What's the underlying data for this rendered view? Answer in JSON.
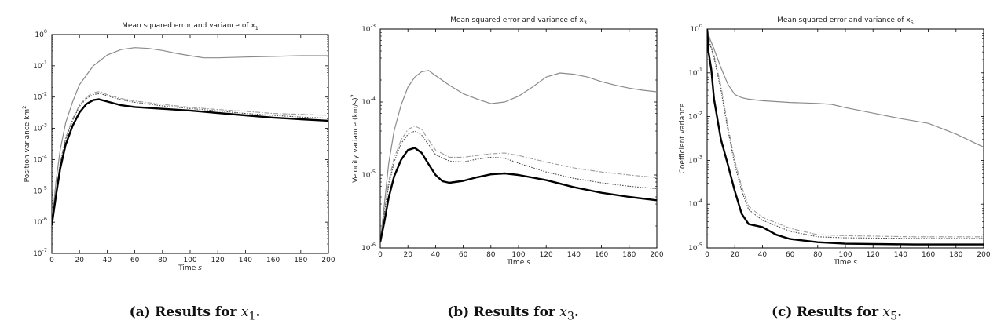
{
  "chart_data": [
    {
      "type": "line",
      "title": "Mean squared error and variance of x",
      "title_sub": "1",
      "xlabel": "Time",
      "xlabel_unit": "s",
      "ylabel": "Position variance km",
      "ylabel_sup": "2",
      "yscale": "log",
      "xlim": [
        0,
        200
      ],
      "ylim": [
        1e-07,
        1
      ],
      "x_ticks": [
        "0",
        "20",
        "40",
        "60",
        "80",
        "100",
        "120",
        "140",
        "160",
        "180",
        "200"
      ],
      "y_ticks": [
        {
          "base": "10",
          "exp": "-7"
        },
        {
          "base": "10",
          "exp": "-6"
        },
        {
          "base": "10",
          "exp": "-5"
        },
        {
          "base": "10",
          "exp": "-4"
        },
        {
          "base": "10",
          "exp": "-3"
        },
        {
          "base": "10",
          "exp": "-2"
        },
        {
          "base": "10",
          "exp": "-1"
        },
        {
          "base": "10",
          "exp": "0"
        }
      ],
      "series": [
        {
          "style": "gray-solid",
          "points": [
            [
              0,
              8e-07
            ],
            [
              3,
              2e-05
            ],
            [
              6,
              0.0002
            ],
            [
              10,
              0.0015
            ],
            [
              15,
              0.007
            ],
            [
              20,
              0.025
            ],
            [
              30,
              0.1
            ],
            [
              40,
              0.22
            ],
            [
              50,
              0.33
            ],
            [
              60,
              0.38
            ],
            [
              70,
              0.36
            ],
            [
              80,
              0.31
            ],
            [
              90,
              0.25
            ],
            [
              100,
              0.21
            ],
            [
              110,
              0.18
            ],
            [
              120,
              0.18
            ],
            [
              140,
              0.19
            ],
            [
              160,
              0.2
            ],
            [
              180,
              0.21
            ],
            [
              200,
              0.21
            ]
          ]
        },
        {
          "style": "dashdot",
          "points": [
            [
              0,
              8e-07
            ],
            [
              3,
              1e-05
            ],
            [
              6,
              8e-05
            ],
            [
              10,
              0.0005
            ],
            [
              15,
              0.002
            ],
            [
              20,
              0.0055
            ],
            [
              25,
              0.01
            ],
            [
              30,
              0.014
            ],
            [
              35,
              0.015
            ],
            [
              40,
              0.012
            ],
            [
              50,
              0.009
            ],
            [
              60,
              0.0075
            ],
            [
              80,
              0.0058
            ],
            [
              100,
              0.0047
            ],
            [
              120,
              0.004
            ],
            [
              140,
              0.0035
            ],
            [
              160,
              0.003
            ],
            [
              180,
              0.0028
            ],
            [
              200,
              0.0026
            ]
          ]
        },
        {
          "style": "dotted",
          "points": [
            [
              0,
              8e-07
            ],
            [
              3,
              9e-06
            ],
            [
              6,
              7e-05
            ],
            [
              10,
              0.00045
            ],
            [
              15,
              0.0018
            ],
            [
              20,
              0.005
            ],
            [
              25,
              0.009
            ],
            [
              30,
              0.012
            ],
            [
              35,
              0.013
            ],
            [
              40,
              0.011
            ],
            [
              50,
              0.0082
            ],
            [
              60,
              0.0068
            ],
            [
              80,
              0.0052
            ],
            [
              100,
              0.0043
            ],
            [
              120,
              0.0036
            ],
            [
              140,
              0.003
            ],
            [
              160,
              0.0026
            ],
            [
              180,
              0.0023
            ],
            [
              200,
              0.0021
            ]
          ]
        },
        {
          "style": "black-thick",
          "points": [
            [
              0,
              8e-07
            ],
            [
              3,
              7e-06
            ],
            [
              6,
              5e-05
            ],
            [
              10,
              0.0003
            ],
            [
              15,
              0.0012
            ],
            [
              20,
              0.0032
            ],
            [
              25,
              0.006
            ],
            [
              30,
              0.008
            ],
            [
              34,
              0.0085
            ],
            [
              40,
              0.0072
            ],
            [
              50,
              0.0055
            ],
            [
              60,
              0.0048
            ],
            [
              80,
              0.0042
            ],
            [
              100,
              0.0037
            ],
            [
              120,
              0.0031
            ],
            [
              140,
              0.0026
            ],
            [
              160,
              0.0022
            ],
            [
              180,
              0.00195
            ],
            [
              200,
              0.00175
            ]
          ]
        }
      ]
    },
    {
      "type": "line",
      "title": "Mean squared error and variance of x",
      "title_sub": "3",
      "xlabel": "Time",
      "xlabel_unit": "s",
      "ylabel": "Velocity variance (km/s)",
      "ylabel_sup": "2",
      "yscale": "log",
      "xlim": [
        0,
        200
      ],
      "ylim": [
        1e-06,
        0.001
      ],
      "x_ticks": [
        "0",
        "20",
        "40",
        "60",
        "80",
        "100",
        "120",
        "140",
        "160",
        "180",
        "200"
      ],
      "y_ticks": [
        {
          "base": "10",
          "exp": "-6"
        },
        {
          "base": "10",
          "exp": "-5"
        },
        {
          "base": "10",
          "exp": "-4"
        },
        {
          "base": "10",
          "exp": "-3"
        }
      ],
      "series": [
        {
          "style": "gray-solid",
          "points": [
            [
              0,
              1.2e-06
            ],
            [
              3,
              4e-06
            ],
            [
              6,
              1.4e-05
            ],
            [
              10,
              4e-05
            ],
            [
              15,
              9e-05
            ],
            [
              20,
              0.00016
            ],
            [
              25,
              0.00022
            ],
            [
              30,
              0.00026
            ],
            [
              35,
              0.00027
            ],
            [
              40,
              0.00023
            ],
            [
              50,
              0.00017
            ],
            [
              60,
              0.00013
            ],
            [
              70,
              0.00011
            ],
            [
              80,
              9.5e-05
            ],
            [
              90,
              0.0001
            ],
            [
              100,
              0.00012
            ],
            [
              110,
              0.00016
            ],
            [
              120,
              0.00022
            ],
            [
              130,
              0.00025
            ],
            [
              140,
              0.00024
            ],
            [
              150,
              0.00022
            ],
            [
              160,
              0.00019
            ],
            [
              170,
              0.00017
            ],
            [
              180,
              0.000155
            ],
            [
              190,
              0.000145
            ],
            [
              200,
              0.000138
            ]
          ]
        },
        {
          "style": "dashdot",
          "points": [
            [
              0,
              1.2e-06
            ],
            [
              3,
              3.2e-06
            ],
            [
              6,
              8e-06
            ],
            [
              10,
              1.7e-05
            ],
            [
              15,
              3e-05
            ],
            [
              20,
              4.2e-05
            ],
            [
              25,
              4.7e-05
            ],
            [
              30,
              4.2e-05
            ],
            [
              35,
              3e-05
            ],
            [
              40,
              2.2e-05
            ],
            [
              50,
              1.75e-05
            ],
            [
              60,
              1.75e-05
            ],
            [
              80,
              1.95e-05
            ],
            [
              90,
              2e-05
            ],
            [
              100,
              1.85e-05
            ],
            [
              120,
              1.5e-05
            ],
            [
              140,
              1.25e-05
            ],
            [
              160,
              1.1e-05
            ],
            [
              180,
              1e-05
            ],
            [
              200,
              9.2e-06
            ]
          ]
        },
        {
          "style": "dotted",
          "points": [
            [
              0,
              1.2e-06
            ],
            [
              3,
              3e-06
            ],
            [
              6,
              7e-06
            ],
            [
              10,
              1.5e-05
            ],
            [
              15,
              2.7e-05
            ],
            [
              20,
              3.6e-05
            ],
            [
              25,
              4e-05
            ],
            [
              30,
              3.5e-05
            ],
            [
              35,
              2.6e-05
            ],
            [
              40,
              1.9e-05
            ],
            [
              50,
              1.55e-05
            ],
            [
              60,
              1.5e-05
            ],
            [
              70,
              1.65e-05
            ],
            [
              80,
              1.75e-05
            ],
            [
              90,
              1.7e-05
            ],
            [
              100,
              1.45e-05
            ],
            [
              120,
              1.1e-05
            ],
            [
              140,
              9e-06
            ],
            [
              160,
              7.8e-06
            ],
            [
              180,
              7e-06
            ],
            [
              200,
              6.5e-06
            ]
          ]
        },
        {
          "style": "black-thick",
          "points": [
            [
              0,
              1.2e-06
            ],
            [
              3,
              2.3e-06
            ],
            [
              6,
              4.8e-06
            ],
            [
              10,
              9.5e-06
            ],
            [
              15,
              1.6e-05
            ],
            [
              20,
              2.2e-05
            ],
            [
              25,
              2.35e-05
            ],
            [
              30,
              2e-05
            ],
            [
              35,
              1.4e-05
            ],
            [
              40,
              1e-05
            ],
            [
              45,
              8.2e-06
            ],
            [
              50,
              7.8e-06
            ],
            [
              60,
              8.3e-06
            ],
            [
              70,
              9.3e-06
            ],
            [
              80,
              1.02e-05
            ],
            [
              90,
              1.05e-05
            ],
            [
              100,
              1e-05
            ],
            [
              120,
              8.5e-06
            ],
            [
              140,
              6.8e-06
            ],
            [
              160,
              5.7e-06
            ],
            [
              180,
              5e-06
            ],
            [
              200,
              4.5e-06
            ]
          ]
        }
      ]
    },
    {
      "type": "line",
      "title": "Mean squared error and variance of x",
      "title_sub": "5",
      "xlabel": "Time",
      "xlabel_unit": "s",
      "ylabel": "Coefficient variance",
      "ylabel_sup": "",
      "yscale": "log",
      "xlim": [
        0,
        200
      ],
      "ylim": [
        1e-05,
        1
      ],
      "x_ticks": [
        "0",
        "20",
        "40",
        "60",
        "80",
        "100",
        "120",
        "140",
        "160",
        "180",
        "200"
      ],
      "y_ticks": [
        {
          "base": "10",
          "exp": "-5"
        },
        {
          "base": "10",
          "exp": "-4"
        },
        {
          "base": "10",
          "exp": "-3"
        },
        {
          "base": "10",
          "exp": "-2"
        },
        {
          "base": "10",
          "exp": "-1"
        },
        {
          "base": "10",
          "exp": "0"
        }
      ],
      "series": [
        {
          "style": "gray-solid",
          "points": [
            [
              0,
              1
            ],
            [
              2,
              0.6
            ],
            [
              5,
              0.35
            ],
            [
              10,
              0.13
            ],
            [
              15,
              0.055
            ],
            [
              20,
              0.032
            ],
            [
              25,
              0.027
            ],
            [
              30,
              0.025
            ],
            [
              40,
              0.023
            ],
            [
              60,
              0.021
            ],
            [
              80,
              0.02
            ],
            [
              90,
              0.019
            ],
            [
              100,
              0.016
            ],
            [
              120,
              0.012
            ],
            [
              140,
              0.009
            ],
            [
              160,
              0.007
            ],
            [
              180,
              0.004
            ],
            [
              200,
              0.002
            ]
          ]
        },
        {
          "style": "dashdot",
          "points": [
            [
              0,
              1
            ],
            [
              2,
              0.5
            ],
            [
              5,
              0.25
            ],
            [
              10,
              0.05
            ],
            [
              15,
              0.006
            ],
            [
              20,
              0.001
            ],
            [
              25,
              0.00025
            ],
            [
              30,
              9e-05
            ],
            [
              40,
              5e-05
            ],
            [
              60,
              2.8e-05
            ],
            [
              80,
              2e-05
            ],
            [
              100,
              1.9e-05
            ],
            [
              150,
              1.8e-05
            ],
            [
              200,
              1.8e-05
            ]
          ]
        },
        {
          "style": "dotted",
          "points": [
            [
              0,
              1
            ],
            [
              2,
              0.45
            ],
            [
              5,
              0.22
            ],
            [
              10,
              0.04
            ],
            [
              15,
              0.005
            ],
            [
              20,
              0.0008
            ],
            [
              25,
              0.0002
            ],
            [
              30,
              7.5e-05
            ],
            [
              40,
              4.3e-05
            ],
            [
              60,
              2.4e-05
            ],
            [
              80,
              1.8e-05
            ],
            [
              100,
              1.7e-05
            ],
            [
              150,
              1.65e-05
            ],
            [
              200,
              1.65e-05
            ]
          ]
        },
        {
          "style": "black-thick",
          "points": [
            [
              0,
              1
            ],
            [
              1,
              0.3
            ],
            [
              3,
              0.12
            ],
            [
              5,
              0.025
            ],
            [
              10,
              0.003
            ],
            [
              15,
              0.0008
            ],
            [
              20,
              0.0002
            ],
            [
              25,
              6e-05
            ],
            [
              30,
              3.5e-05
            ],
            [
              40,
              3e-05
            ],
            [
              50,
              2e-05
            ],
            [
              60,
              1.6e-05
            ],
            [
              80,
              1.35e-05
            ],
            [
              100,
              1.25e-05
            ],
            [
              150,
              1.2e-05
            ],
            [
              200,
              1.2e-05
            ]
          ]
        }
      ]
    }
  ],
  "captions": [
    {
      "letter": "(a)",
      "text": "Results for",
      "var": "x",
      "sub": "1"
    },
    {
      "letter": "(b)",
      "text": "Results for",
      "var": "x",
      "sub": "3"
    },
    {
      "letter": "(c)",
      "text": "Results for",
      "var": "x",
      "sub": "5"
    }
  ]
}
